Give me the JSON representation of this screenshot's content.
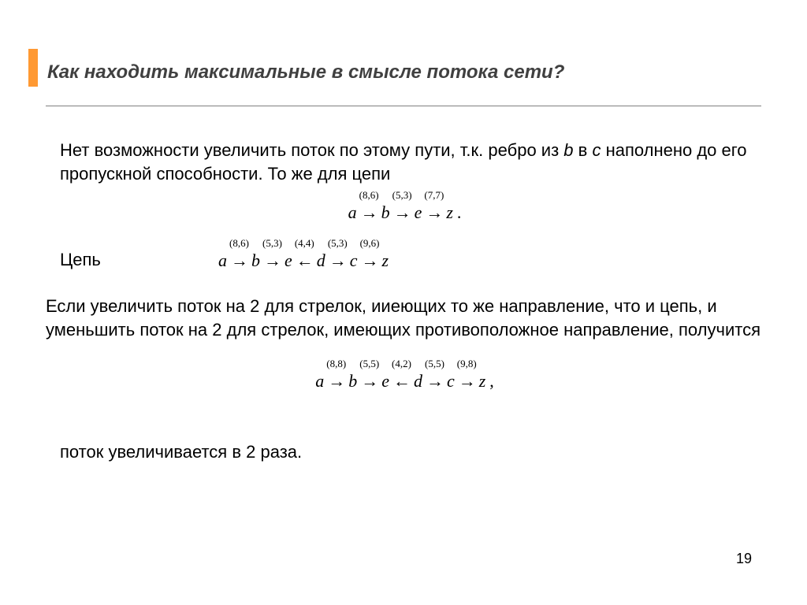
{
  "accent_color": "#ff9933",
  "title": "Как находить максимальные в смысле потока сети?",
  "para1_a": "Нет возможности  увеличить поток по этому пути, т.к. ребро  из ",
  "para1_b_var": "b",
  "para1_mid": " в ",
  "para1_c_var": "c",
  "para1_b": " наполнено до его пропускной способности. То же для цепи",
  "chain_label": "Цепь",
  "para2": "Если увеличить поток на 2 для стрелок, ииеющих то же направление, что и цепь, и уменьшить поток на 2 для стрелок, имеющих противоположное направление, получится",
  "para3": "поток увеличивается в 2 раза.",
  "page_number": "19",
  "eq1": {
    "nodes": [
      "a",
      "b",
      "e",
      "z"
    ],
    "arrows": [
      {
        "dir": "→",
        "label": "(8,6)"
      },
      {
        "dir": "→",
        "label": "(5,3)"
      },
      {
        "dir": "→",
        "label": "(7,7)"
      }
    ],
    "tail": "."
  },
  "eq2": {
    "nodes": [
      "a",
      "b",
      "e",
      "d",
      "c",
      "z"
    ],
    "arrows": [
      {
        "dir": "→",
        "label": "(8,6)"
      },
      {
        "dir": "→",
        "label": "(5,3)"
      },
      {
        "dir": "←",
        "label": "(4,4)"
      },
      {
        "dir": "→",
        "label": "(5,3)"
      },
      {
        "dir": "→",
        "label": "(9,6)"
      }
    ],
    "tail": ""
  },
  "eq3": {
    "nodes": [
      "a",
      "b",
      "e",
      "d",
      "c",
      "z"
    ],
    "arrows": [
      {
        "dir": "→",
        "label": "(8,8)"
      },
      {
        "dir": "→",
        "label": "(5,5)"
      },
      {
        "dir": "←",
        "label": "(4,2)"
      },
      {
        "dir": "→",
        "label": "(5,5)"
      },
      {
        "dir": "→",
        "label": "(9,8)"
      }
    ],
    "tail": ","
  }
}
